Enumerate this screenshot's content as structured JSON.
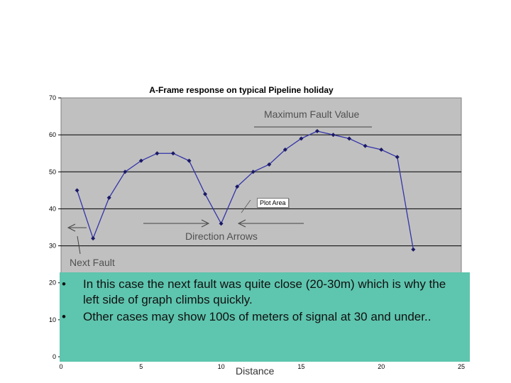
{
  "chart_data": {
    "type": "line",
    "title": "A-Frame response on typical Pipeline holiday",
    "xlabel": "Distance",
    "ylabel": "",
    "xlim": [
      0,
      25
    ],
    "ylim": [
      0,
      70
    ],
    "x_ticks": [
      "0",
      "5",
      "10",
      "15",
      "20",
      "25"
    ],
    "y_ticks": [
      "0",
      "10",
      "20",
      "30",
      "40",
      "50",
      "60",
      "70"
    ],
    "grid": true,
    "legend": "none",
    "series": [
      {
        "x": [
          1,
          2,
          3,
          4,
          5,
          6,
          7,
          8,
          9,
          10,
          11,
          12,
          13,
          14,
          15,
          16,
          17,
          18,
          19,
          20,
          21,
          22
        ],
        "values": [
          45,
          32,
          43,
          50,
          53,
          55,
          55,
          53,
          44,
          36,
          46,
          50,
          52,
          56,
          59,
          61,
          60,
          59,
          57,
          56,
          54,
          29
        ]
      }
    ],
    "annotations": {
      "max_fault": "Maximum Fault Value",
      "direction": "Direction Arrows",
      "next_fault": "Next Fault",
      "plot_area": "Plot Area"
    }
  },
  "colors": {
    "plot_bg": "#c0c0c0",
    "line": "#3333aa",
    "marker": "#1a1a66",
    "bullet_bg": "#5ec5ae"
  },
  "bullets": [
    "In this case the next fault was quite close (20-30m) which is why the left side of graph climbs quickly.",
    "Other cases may show 100s of meters of signal at 30 and under.."
  ]
}
